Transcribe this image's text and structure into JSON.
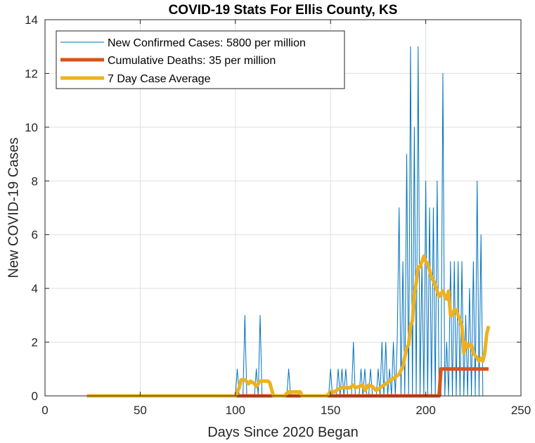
{
  "chart_data": {
    "type": "line",
    "title": "COVID-19 Stats For Ellis County, KS",
    "xlabel": "Days Since 2020 Began",
    "ylabel": "New COVID-19 Cases",
    "xlim": [
      0,
      250
    ],
    "ylim": [
      0,
      14
    ],
    "xticks": [
      0,
      50,
      100,
      150,
      200,
      250
    ],
    "yticks": [
      0,
      2,
      4,
      6,
      8,
      10,
      12,
      14
    ],
    "grid": true,
    "legend_location": "top-left",
    "series": [
      {
        "name": "New Confirmed Cases: 5800 per million",
        "color": "#0072BD",
        "style": "thin",
        "x": [
          22,
          100,
          101,
          102,
          103,
          104,
          105,
          106,
          107,
          110,
          111,
          112,
          113,
          114,
          115,
          120,
          126,
          127,
          128,
          129,
          130,
          148,
          149,
          150,
          151,
          152,
          153,
          154,
          155,
          156,
          157,
          158,
          159,
          160,
          161,
          162,
          163,
          164,
          165,
          166,
          167,
          168,
          169,
          170,
          171,
          172,
          173,
          174,
          175,
          176,
          177,
          178,
          179,
          180,
          181,
          182,
          183,
          184,
          185,
          186,
          187,
          188,
          189,
          190,
          191,
          192,
          193,
          194,
          195,
          196,
          197,
          198,
          199,
          200,
          201,
          202,
          203,
          204,
          205,
          206,
          207,
          208,
          209,
          210,
          211,
          212,
          213,
          214,
          215,
          216,
          217,
          218,
          219,
          220,
          221,
          222,
          223,
          224,
          225,
          226,
          227,
          228,
          229,
          230,
          231,
          232,
          233
        ],
        "y": [
          0,
          0,
          1,
          0,
          0,
          0,
          3,
          0,
          0,
          0,
          1,
          0,
          3,
          0,
          0,
          0,
          0,
          0,
          1,
          0,
          0,
          0,
          0,
          1,
          0,
          0,
          0,
          1,
          0,
          1,
          0,
          1,
          0,
          0,
          0,
          2,
          0,
          0,
          0,
          1,
          0,
          1,
          0,
          0,
          1,
          0,
          0,
          0,
          1,
          0,
          2,
          0,
          2,
          0,
          1,
          0,
          2,
          0,
          2,
          7,
          0,
          5,
          0,
          9,
          0,
          13,
          0,
          10,
          0,
          13,
          0,
          5,
          0,
          8,
          0,
          7,
          0,
          7,
          0,
          8,
          0,
          0,
          12,
          0,
          2,
          0,
          5,
          0,
          5,
          0,
          5,
          0,
          5,
          0,
          3,
          0,
          4,
          0,
          5,
          0,
          8,
          0,
          6,
          0,
          0,
          0,
          0
        ]
      },
      {
        "name": "Cumulative Deaths: 35 per million",
        "color": "#D95319",
        "style": "thick",
        "x": [
          22,
          207,
          208,
          233
        ],
        "y": [
          0,
          0,
          1,
          1
        ]
      },
      {
        "name": "7 Day Case Average",
        "color": "#EDB120",
        "style": "thick",
        "x": [
          22,
          100,
          102,
          103,
          105,
          107,
          108,
          110,
          111,
          113,
          115,
          117,
          118,
          120,
          124,
          126,
          127,
          128,
          130,
          132,
          134,
          135,
          136,
          140,
          148,
          150,
          152,
          154,
          156,
          158,
          160,
          162,
          163,
          165,
          167,
          168,
          170,
          172,
          174,
          176,
          178,
          180,
          182,
          184,
          186,
          188,
          190,
          191,
          192,
          193,
          194,
          195,
          196,
          197,
          198,
          199,
          200,
          201,
          202,
          203,
          204,
          205,
          206,
          207,
          208,
          209,
          210,
          211,
          212,
          213,
          214,
          215,
          216,
          217,
          218,
          219,
          220,
          221,
          222,
          223,
          224,
          225,
          226,
          227,
          228,
          229,
          230,
          231,
          232,
          233
        ],
        "y": [
          0,
          0,
          0.3,
          0.6,
          0.6,
          0.45,
          0.55,
          0.45,
          0.35,
          0.55,
          0.55,
          0.55,
          0.5,
          0,
          0,
          0,
          0.1,
          0.15,
          0.15,
          0.15,
          0.15,
          0,
          0,
          0,
          0,
          0.15,
          0.15,
          0.25,
          0.3,
          0.3,
          0.3,
          0.4,
          0.3,
          0.35,
          0.4,
          0.2,
          0.4,
          0.35,
          0.2,
          0.3,
          0.4,
          0.5,
          0.6,
          0.7,
          0.8,
          1.1,
          1.8,
          1.9,
          2.6,
          2.8,
          3.8,
          4.2,
          4.8,
          4.8,
          5.0,
          5.2,
          5.0,
          4.9,
          4.7,
          4.4,
          4.3,
          4.1,
          3.9,
          3.7,
          3.8,
          3.9,
          3.7,
          3.6,
          3.9,
          3.0,
          3.0,
          3.2,
          3.2,
          3.0,
          2.8,
          2.6,
          1.6,
          2.0,
          1.8,
          1.9,
          1.9,
          1.6,
          1.5,
          1.4,
          1.3,
          1.4,
          1.3,
          1.6,
          2.3,
          2.6
        ]
      }
    ]
  }
}
